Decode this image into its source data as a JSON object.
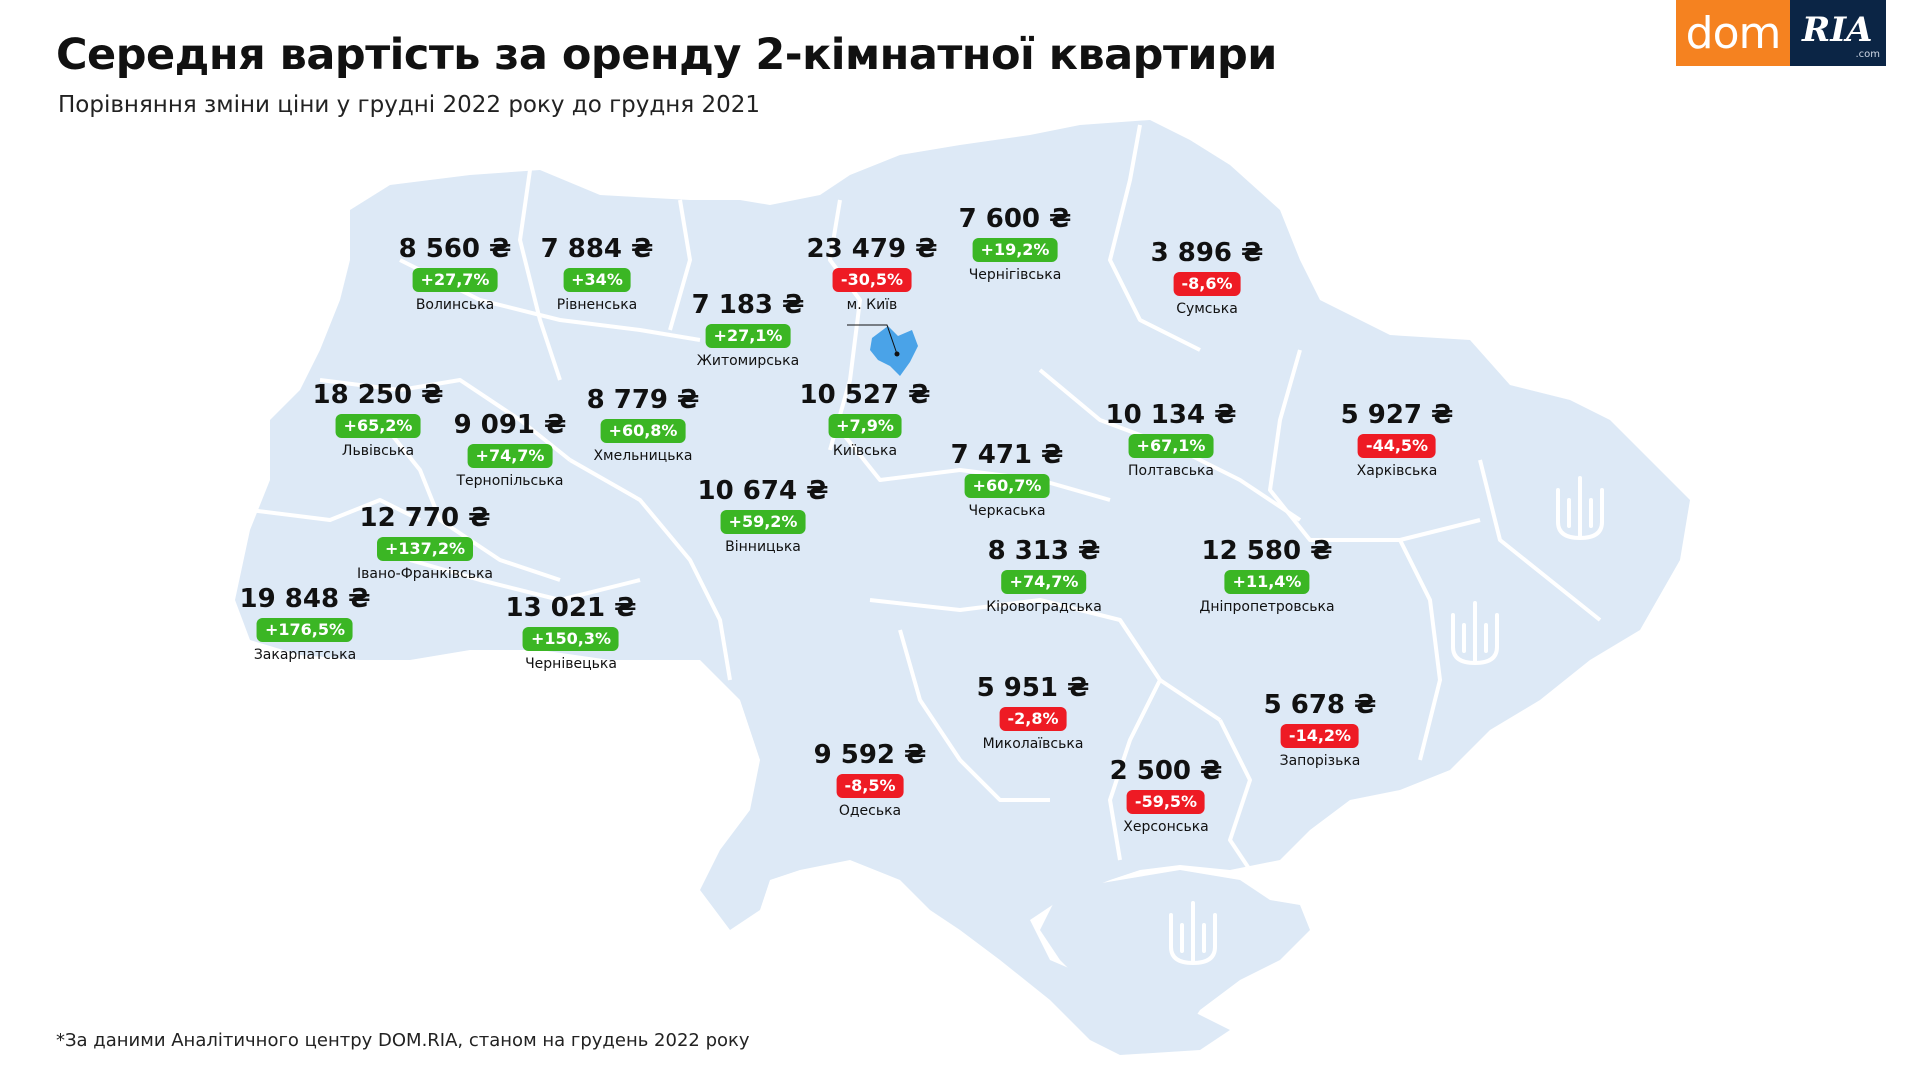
{
  "header": {
    "title": "Середня вартість за оренду 2-кімнатної квартири",
    "subtitle": "Порівняння зміни ціни у грудні 2022 року до грудня 2021"
  },
  "logo": {
    "dom": "dom",
    "ria": "RIA",
    "com": ".com"
  },
  "footnote": "*За даними Аналітичного центру DOM.RIA, станом на грудень 2022 року",
  "colors": {
    "land": "#dde9f6",
    "border": "#ffffff",
    "kyiv": "#4aa3e8",
    "up": "#3bb624",
    "down": "#ee1b24"
  },
  "icons": [
    "trident-icon"
  ],
  "regions": [
    {
      "name": "Волинська",
      "price": "8 560 ₴",
      "change": "+27,7%",
      "trend": "up"
    },
    {
      "name": "Рівненська",
      "price": "7 884 ₴",
      "change": "+34%",
      "trend": "up"
    },
    {
      "name": "Житомирська",
      "price": "7 183 ₴",
      "change": "+27,1%",
      "trend": "up"
    },
    {
      "name": "м. Київ",
      "price": "23 479 ₴",
      "change": "-30,5%",
      "trend": "down"
    },
    {
      "name": "Чернігівська",
      "price": "7 600 ₴",
      "change": "+19,2%",
      "trend": "up"
    },
    {
      "name": "Сумська",
      "price": "3 896 ₴",
      "change": "-8,6%",
      "trend": "down"
    },
    {
      "name": "Львівська",
      "price": "18 250 ₴",
      "change": "+65,2%",
      "trend": "up"
    },
    {
      "name": "Тернопільська",
      "price": "9 091 ₴",
      "change": "+74,7%",
      "trend": "up"
    },
    {
      "name": "Хмельницька",
      "price": "8 779 ₴",
      "change": "+60,8%",
      "trend": "up"
    },
    {
      "name": "Київська",
      "price": "10 527 ₴",
      "change": "+7,9%",
      "trend": "up"
    },
    {
      "name": "Полтавська",
      "price": "10 134 ₴",
      "change": "+67,1%",
      "trend": "up"
    },
    {
      "name": "Харківська",
      "price": "5 927 ₴",
      "change": "-44,5%",
      "trend": "down"
    },
    {
      "name": "Черкаська",
      "price": "7 471 ₴",
      "change": "+60,7%",
      "trend": "up"
    },
    {
      "name": "Вінницька",
      "price": "10 674 ₴",
      "change": "+59,2%",
      "trend": "up"
    },
    {
      "name": "Івано-Франківська",
      "price": "12 770 ₴",
      "change": "+137,2%",
      "trend": "up"
    },
    {
      "name": "Закарпатська",
      "price": "19 848 ₴",
      "change": "+176,5%",
      "trend": "up"
    },
    {
      "name": "Чернівецька",
      "price": "13 021 ₴",
      "change": "+150,3%",
      "trend": "up"
    },
    {
      "name": "Кіровоградська",
      "price": "8 313 ₴",
      "change": "+74,7%",
      "trend": "up"
    },
    {
      "name": "Дніпропетровська",
      "price": "12 580 ₴",
      "change": "+11,4%",
      "trend": "up"
    },
    {
      "name": "Миколаївська",
      "price": "5 951 ₴",
      "change": "-2,8%",
      "trend": "down"
    },
    {
      "name": "Запорізька",
      "price": "5 678 ₴",
      "change": "-14,2%",
      "trend": "down"
    },
    {
      "name": "Одеська",
      "price": "9 592 ₴",
      "change": "-8,5%",
      "trend": "down"
    },
    {
      "name": "Херсонська",
      "price": "2 500 ₴",
      "change": "-59,5%",
      "trend": "down"
    }
  ]
}
